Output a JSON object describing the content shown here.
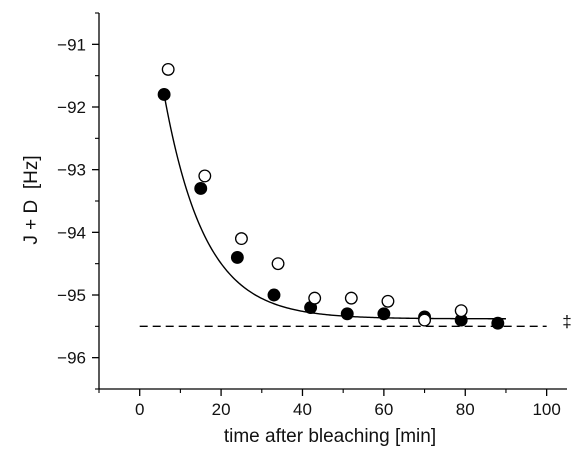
{
  "chart_data": {
    "type": "scatter",
    "xlabel": "time after bleaching [min]",
    "ylabel": "J + D  [Hz]",
    "xlim": [
      -10,
      105
    ],
    "ylim": [
      -96.5,
      -90.5
    ],
    "xticks": [
      0,
      20,
      40,
      60,
      80,
      100
    ],
    "yticks": [
      -91,
      -92,
      -93,
      -94,
      -95,
      -96
    ],
    "xtick_labels": [
      "0",
      "20",
      "40",
      "60",
      "80",
      "100"
    ],
    "ytick_labels": [
      "−91",
      "−92",
      "−93",
      "−94",
      "−95",
      "−96"
    ],
    "grid": false,
    "legend": "none",
    "series": [
      {
        "marker": "filled-circle",
        "color": "#000000",
        "x": [
          6,
          15,
          24,
          33,
          42,
          51,
          60,
          70,
          79,
          88
        ],
        "y": [
          -91.8,
          -93.3,
          -94.4,
          -95.0,
          -95.2,
          -95.3,
          -95.3,
          -95.35,
          -95.4,
          -95.45
        ]
      },
      {
        "marker": "open-circle",
        "color": "#000000",
        "x": [
          7,
          16,
          25,
          34,
          43,
          52,
          61,
          70,
          79
        ],
        "y": [
          -91.4,
          -93.1,
          -94.1,
          -94.5,
          -95.05,
          -95.05,
          -95.1,
          -95.4,
          -95.25
        ]
      }
    ],
    "fit_curve": {
      "style": "solid",
      "model": "exponential decay",
      "x_start": 6,
      "x_end": 90,
      "y_at_start": -91.8,
      "asymptote": -95.38,
      "tau": 10
    },
    "reference_line": {
      "style": "dashed",
      "y": -95.5,
      "x_start": 0,
      "x_end": 100
    },
    "annotations": [
      "‡"
    ]
  }
}
